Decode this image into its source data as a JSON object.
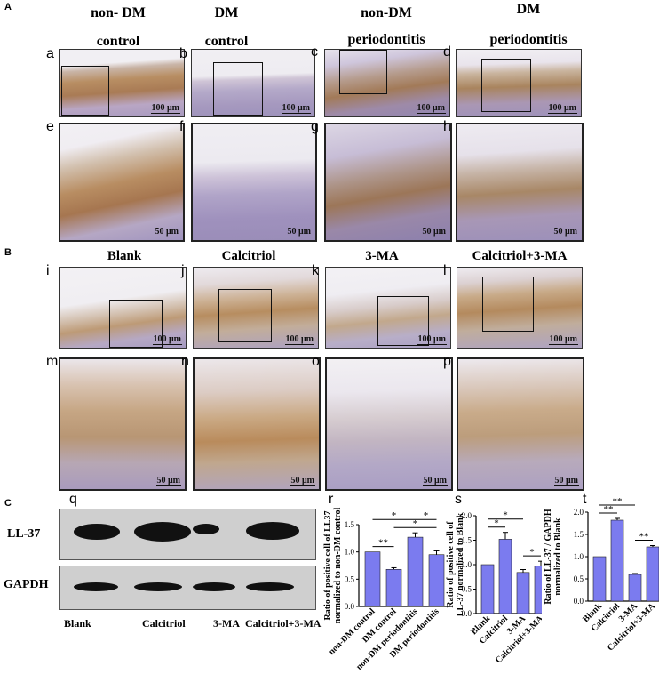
{
  "section_A": "A",
  "section_B": "B",
  "section_C": "C",
  "headers_A": [
    {
      "l1": "non- DM",
      "l2": "control"
    },
    {
      "l1": "DM",
      "l2": "control"
    },
    {
      "l1": "non-DM",
      "l2": "periodontitis"
    },
    {
      "l1": "DM",
      "l2": "periodontitis"
    }
  ],
  "headers_B": [
    "Blank",
    "Calcitriol",
    "3-MA",
    "Calcitriol+3-MA"
  ],
  "panel_letters": [
    "a",
    "b",
    "c",
    "d",
    "e",
    "f",
    "g",
    "h",
    "i",
    "j",
    "k",
    "l",
    "m",
    "n",
    "o",
    "p",
    "q",
    "r",
    "s",
    "t"
  ],
  "scale_100": "100 μm",
  "scale_50": "50 μm",
  "blot": {
    "rows": [
      "LL-37",
      "GAPDH"
    ],
    "lanes": [
      "Blank",
      "Calcitriol",
      "3-MA",
      "Calcitriol+3-MA"
    ]
  },
  "colors": {
    "bar": "#7b7bef",
    "stain_bg": "#e9e6ee",
    "tissue": "#c2a58a"
  },
  "chart_data": [
    {
      "type": "bar",
      "ylabel": "Ratio of positive cell of LL37 normalized to non-DM control",
      "categories": [
        "non-DM control",
        "DM control",
        "non-DM periodontitis",
        "DM periodontitis"
      ],
      "values": [
        1.0,
        0.68,
        1.27,
        0.95
      ],
      "errors": [
        0.0,
        0.03,
        0.08,
        0.07
      ],
      "ylim": [
        0,
        1.5
      ],
      "yticks": [
        "0.0",
        "0.5",
        "1.0",
        "1.5"
      ],
      "significance": [
        {
          "from": 0,
          "to": 1,
          "label": "**"
        },
        {
          "from": 0,
          "to": 2,
          "label": "*"
        },
        {
          "from": 1,
          "to": 3,
          "label": "*"
        },
        {
          "from": 2,
          "to": 3,
          "label": "*"
        }
      ]
    },
    {
      "type": "bar",
      "ylabel": "Ratio of positive cell of LL-37 normalized to Blank",
      "categories": [
        "Blank",
        "Calcitriol",
        "3-MA",
        "Calcitriol+3-MA"
      ],
      "values": [
        1.0,
        1.52,
        0.84,
        0.97
      ],
      "errors": [
        0.0,
        0.14,
        0.06,
        0.1
      ],
      "ylim": [
        0,
        2.0
      ],
      "yticks": [
        "0.0",
        "0.5",
        "1.0",
        "1.5",
        "2.0"
      ],
      "significance": [
        {
          "from": 0,
          "to": 1,
          "label": "*"
        },
        {
          "from": 0,
          "to": 2,
          "label": "*"
        },
        {
          "from": 2,
          "to": 3,
          "label": "*"
        }
      ]
    },
    {
      "type": "bar",
      "ylabel": "Ratio of LL-37 / GAPDH normalized to Blank",
      "categories": [
        "Blank",
        "Calcitriol",
        "3-MA",
        "Calcitriol+3-MA"
      ],
      "values": [
        1.0,
        1.82,
        0.6,
        1.22
      ],
      "errors": [
        0.0,
        0.04,
        0.02,
        0.03
      ],
      "ylim": [
        0,
        2.0
      ],
      "yticks": [
        "0.0",
        "0.5",
        "1.0",
        "1.5",
        "2.0"
      ],
      "significance": [
        {
          "from": 0,
          "to": 1,
          "label": "**"
        },
        {
          "from": 0,
          "to": 2,
          "label": "**"
        },
        {
          "from": 2,
          "to": 3,
          "label": "**"
        }
      ]
    }
  ]
}
